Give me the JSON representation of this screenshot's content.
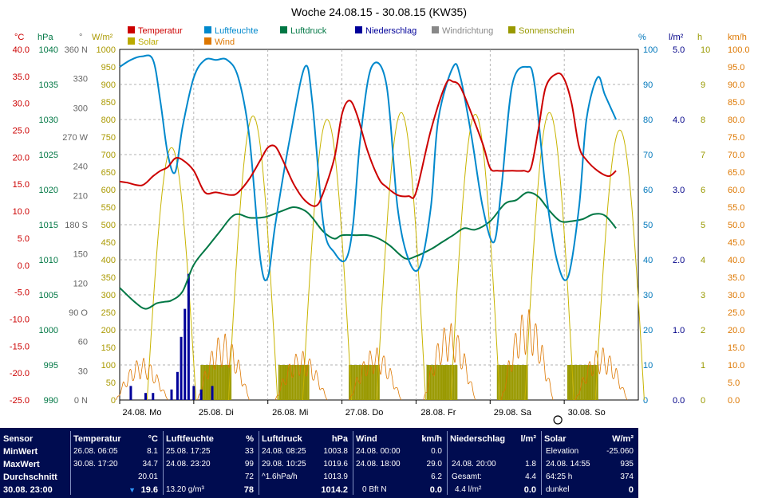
{
  "chart_data": {
    "type": "line",
    "title": "Woche 24.08.15 - 30.08.15 (KW35)",
    "x_labels": [
      "24.08. Mo",
      "25.08. Di",
      "26.08. Mi",
      "27.08. Do",
      "28.08. Fr",
      "29.08. Sa",
      "30.08. So"
    ],
    "legend": [
      {
        "name": "Temperatur",
        "color": "#cc0000"
      },
      {
        "name": "Luftfeuchte",
        "color": "#0088cc"
      },
      {
        "name": "Luftdruck",
        "color": "#007744"
      },
      {
        "name": "Niederschlag",
        "color": "#000099"
      },
      {
        "name": "Windrichtung",
        "color": "#888888"
      },
      {
        "name": "Sonnenschein",
        "color": "#999900"
      },
      {
        "name": "Solar",
        "color": "#bbaa00"
      },
      {
        "name": "Wind",
        "color": "#dd7700"
      }
    ],
    "axes": {
      "temp": {
        "unit": "°C",
        "min": -25,
        "max": 40,
        "step": 5,
        "color": "#cc0000"
      },
      "pressure": {
        "unit": "hPa",
        "min": 990,
        "max": 1040,
        "step": 5,
        "color": "#007744"
      },
      "direction": {
        "unit": "°",
        "min": 0,
        "max": 360,
        "ticks": [
          "0 N",
          "30",
          "60",
          "90 O",
          "120",
          "150",
          "180 S",
          "210",
          "240",
          "270 W",
          "300",
          "330",
          "360 N"
        ],
        "color": "#666666"
      },
      "solar": {
        "unit": "W/m²",
        "min": 0,
        "max": 1000,
        "step": 50,
        "color": "#aa9900"
      },
      "humidity": {
        "unit": "%",
        "min": 0,
        "max": 100,
        "step": 10,
        "color": "#0077bb"
      },
      "rain": {
        "unit": "l/m²",
        "min": 0,
        "max": 5,
        "ticks": [
          "0.0",
          "1.0",
          "2.0",
          "3.0",
          "4.0",
          "5.0"
        ],
        "color": "#000088"
      },
      "sunshine": {
        "unit": "h",
        "min": 0,
        "max": 10,
        "step": 1,
        "color": "#999900"
      },
      "wind": {
        "unit": "km/h",
        "min": 0,
        "max": 100,
        "step": 5,
        "color": "#dd7700"
      }
    },
    "series": {
      "temperatur": {
        "x": [
          0,
          0.1,
          0.3,
          0.45,
          0.55,
          0.65,
          0.75,
          0.85,
          1,
          1.15,
          1.3,
          1.5,
          1.6,
          1.75,
          1.9,
          2,
          2.1,
          2.2,
          2.35,
          2.5,
          2.65,
          2.75,
          2.9,
          3,
          3.1,
          3.2,
          3.35,
          3.5,
          3.6,
          3.75,
          3.9,
          4,
          4.2,
          4.4,
          4.5,
          4.6,
          4.75,
          4.9,
          5,
          5.1,
          5.3,
          5.45,
          5.55,
          5.65,
          5.75,
          5.9,
          6,
          6.1,
          6.2,
          6.3,
          6.45,
          6.6,
          6.7
        ],
        "y": [
          15.5,
          15.3,
          14.8,
          16.5,
          17.5,
          18.2,
          19.8,
          19.5,
          17.5,
          13.5,
          13.5,
          13,
          13.5,
          16,
          19.5,
          21.8,
          22,
          19.5,
          15,
          12,
          11,
          13.5,
          20,
          28,
          30.5,
          28,
          21,
          16,
          14.5,
          13,
          12.8,
          13.5,
          25,
          33.5,
          34,
          33,
          28,
          22.5,
          18,
          17.5,
          17.5,
          17.5,
          18,
          25,
          33,
          35.5,
          34.5,
          30,
          22,
          19.5,
          17.5,
          16.5,
          17.5
        ]
      },
      "luftfeuchte": {
        "x": [
          0,
          0.15,
          0.3,
          0.45,
          0.55,
          0.65,
          0.75,
          0.85,
          1,
          1.15,
          1.3,
          1.45,
          1.6,
          1.75,
          1.9,
          2,
          2.1,
          2.3,
          2.5,
          2.6,
          2.75,
          2.9,
          3.05,
          3.15,
          3.25,
          3.4,
          3.6,
          3.75,
          3.9,
          4.05,
          4.2,
          4.3,
          4.5,
          4.6,
          4.75,
          4.9,
          5.05,
          5.15,
          5.3,
          5.5,
          5.6,
          5.75,
          5.9,
          6.05,
          6.2,
          6.3,
          6.45,
          6.55,
          6.7
        ],
        "y": [
          95,
          97,
          98,
          97,
          85,
          70,
          65,
          78,
          92,
          97,
          97,
          97,
          92,
          75,
          40,
          35,
          50,
          75,
          95,
          85,
          50,
          42,
          40,
          50,
          75,
          95,
          90,
          55,
          40,
          38,
          55,
          80,
          95,
          92,
          75,
          55,
          45,
          60,
          90,
          95,
          90,
          60,
          40,
          35,
          55,
          80,
          92,
          87,
          80
        ]
      },
      "luftdruck": {
        "x": [
          0,
          0.2,
          0.35,
          0.5,
          0.6,
          0.7,
          0.85,
          1,
          1.2,
          1.35,
          1.5,
          1.6,
          1.75,
          1.9,
          2,
          2.2,
          2.35,
          2.5,
          2.6,
          2.75,
          2.9,
          3,
          3.2,
          3.35,
          3.5,
          3.65,
          3.85,
          4,
          4.2,
          4.35,
          4.5,
          4.65,
          4.8,
          5,
          5.2,
          5.35,
          5.5,
          5.65,
          5.8,
          5.95,
          6.1,
          6.25,
          6.4,
          6.55,
          6.7
        ],
        "y": [
          1006,
          1004,
          1003,
          1003.8,
          1004,
          1004.2,
          1005.5,
          1009.3,
          1012,
          1014,
          1016,
          1016.5,
          1016,
          1016,
          1016.2,
          1017,
          1017.5,
          1017,
          1016,
          1014,
          1013,
          1013.5,
          1013.5,
          1013.5,
          1013,
          1012,
          1010.2,
          1010.5,
          1011.5,
          1012.5,
          1013.5,
          1014.5,
          1014.3,
          1015.5,
          1018,
          1018.5,
          1019.6,
          1019,
          1017,
          1015.5,
          1015.5,
          1015.8,
          1016.5,
          1016.3,
          1014.5
        ]
      },
      "niederschlag": {
        "x": [
          0.15,
          0.35,
          0.45,
          0.7,
          0.78,
          0.83,
          0.88,
          0.93,
          1,
          1.1,
          1.25
        ],
        "y": [
          0.2,
          0.1,
          0.1,
          0.15,
          0.4,
          0.9,
          1.3,
          1.8,
          0.2,
          0.15,
          0.2
        ]
      },
      "solar_days": [
        0.7,
        1.8,
        2.8,
        3.8,
        4.8,
        5.8,
        6.75
      ],
      "solar_peak": [
        720,
        810,
        800,
        820,
        815,
        820,
        770
      ],
      "sunshine_days": [
        1.3,
        2.35,
        3.3,
        4.35,
        5.3,
        6.25
      ],
      "sunshine_level": [
        1,
        1,
        1,
        1,
        1,
        1
      ],
      "wind_days": [
        0.3,
        1.4,
        2.45,
        3.45,
        4.45,
        5.5,
        6.5
      ],
      "wind_peak": [
        12,
        19,
        14,
        15,
        22,
        26,
        15
      ]
    },
    "marker_label": "30.08."
  },
  "table": {
    "rows_labels": [
      "Sensor",
      "MinWert",
      "MaxWert",
      "Durchschnitt",
      "30.08. 23:00"
    ],
    "temperatur": {
      "title": "Temperatur",
      "unit": "°C",
      "min_time": "26.08. 06:05",
      "min": "8.1",
      "max_time": "30.08. 17:20",
      "max": "34.7",
      "avg": "20.01",
      "current": "19.6"
    },
    "luftfeuchte": {
      "title": "Luftfeuchte",
      "unit": "%",
      "min_time": "25.08. 17:25",
      "min": "33",
      "max_time": "24.08. 23:20",
      "max": "99",
      "avg": "72",
      "extra": "13.20 g/m³",
      "current": "78"
    },
    "luftdruck": {
      "title": "Luftdruck",
      "unit": "hPa",
      "min_time": "24.08. 08:25",
      "min": "1003.8",
      "max_time": "29.08. 10:25",
      "max": "1019.6",
      "trend": "^1.6hPa/h",
      "avg": "1013.9",
      "current": "1014.2"
    },
    "wind": {
      "title": "Wind",
      "unit": "km/h",
      "min_time": "24.08. 00:00",
      "min": "0.0",
      "max_time": "24.08. 18:00",
      "max": "29.0",
      "avg": "6.2",
      "extra": "0 Bft N",
      "current": "0.0"
    },
    "niederschlag": {
      "title": "Niederschlag",
      "unit": "l/m²",
      "max_time": "24.08. 20:00",
      "max": "1.8",
      "total_label": "Gesamt:",
      "total": "4.4",
      "extra": "4.4 l/m²",
      "current": "0.0"
    },
    "solar": {
      "title": "Solar",
      "unit": "W/m²",
      "elev_label": "Elevation",
      "elev": "-25.060",
      "max_time": "24.08. 14:55",
      "max": "935",
      "hours": "64:25 h",
      "avg": "374",
      "state": "dunkel",
      "current": "0"
    }
  }
}
